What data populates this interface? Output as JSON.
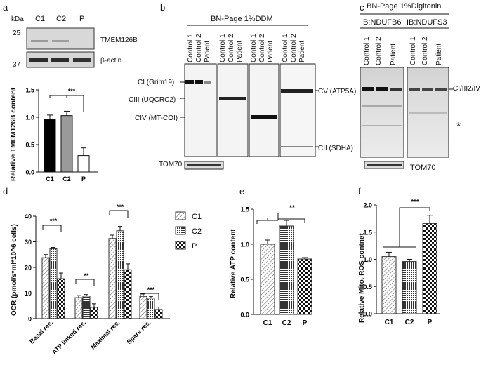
{
  "panels": {
    "a": {
      "letter": "a",
      "blot_header": {
        "kda": "kDa",
        "lanes": [
          "C1",
          "C2",
          "P"
        ],
        "markers": [
          "25",
          "37"
        ],
        "bands": [
          "TMEM126B",
          "β-actin"
        ]
      },
      "significance": "***"
    },
    "b": {
      "letter": "b",
      "title": "BN-Page 1%DDM",
      "lanes": [
        "Control 1",
        "Control 2",
        "Patient"
      ],
      "left_labels": [
        "CI (Grim19)",
        "CIII (UQCRC2)",
        "CIV (MT-COI)"
      ],
      "right_labels": [
        "CV (ATP5A)",
        "CII (SDHA)"
      ],
      "loading": "TOM70"
    },
    "c": {
      "letter": "c",
      "title": "BN-Page 1%Digitonin",
      "ib_left": "IB:NDUFB6",
      "ib_right": "IB:NDUFS3",
      "lanes": [
        "Control 1",
        "Control 2",
        "Patient"
      ],
      "right_label": "CI/III2/IV",
      "asterisk": "*",
      "loading": "TOM70"
    },
    "d": {
      "letter": "d"
    },
    "e": {
      "letter": "e"
    },
    "f": {
      "letter": "f"
    }
  },
  "chart_data": [
    {
      "id": "a",
      "type": "bar",
      "categories": [
        "C1",
        "C2",
        "P"
      ],
      "values": [
        0.96,
        1.03,
        0.3
      ],
      "errors": [
        0.08,
        0.08,
        0.14
      ],
      "ylabel": "Relative TMEM126B content",
      "ylim": [
        0,
        1.5
      ],
      "yticks": [
        "0.0",
        "0.5",
        "1.0",
        "1.5"
      ],
      "colors": [
        "#000000",
        "#9a9a9a",
        "#ffffff"
      ],
      "significance": "***"
    },
    {
      "id": "d",
      "type": "bar",
      "groups": [
        "Basal res.",
        "ATP linked res.",
        "Maximal res.",
        "Spare res."
      ],
      "series": [
        {
          "name": "C1",
          "values": [
            23.8,
            8.2,
            31.3,
            8.7
          ],
          "errors": [
            1.2,
            0.8,
            1.3,
            0.9
          ]
        },
        {
          "name": "C2",
          "values": [
            27.3,
            8.8,
            34.3,
            8.0
          ],
          "errors": [
            0.5,
            0.6,
            1.7,
            0.7
          ]
        },
        {
          "name": "P",
          "values": [
            15.6,
            4.4,
            19.1,
            3.6
          ],
          "errors": [
            2.2,
            1.4,
            2.3,
            0.9
          ]
        }
      ],
      "ylabel": "OCR (pmol/s*ml*10^6 cells)",
      "ylim": [
        0,
        40
      ],
      "yticks": [
        "0",
        "10",
        "20",
        "30",
        "40"
      ],
      "significance": [
        "***",
        "**",
        "***",
        "***"
      ],
      "legend": [
        "C1",
        "C2",
        "P"
      ]
    },
    {
      "id": "e",
      "type": "bar",
      "categories": [
        "C1",
        "C2",
        "P"
      ],
      "values": [
        1.0,
        1.26,
        0.79
      ],
      "errors": [
        0.06,
        0.08,
        0.02
      ],
      "ylabel": "Relative ATP content",
      "ylim": [
        0,
        1.5
      ],
      "yticks": [
        "0.0",
        "0.5",
        "1.0",
        "1.5"
      ],
      "significance": "**"
    },
    {
      "id": "f",
      "type": "bar",
      "categories": [
        "C1",
        "C2",
        "P"
      ],
      "values": [
        1.05,
        0.96,
        1.66
      ],
      "errors": [
        0.08,
        0.04,
        0.15
      ],
      "ylabel": "Relative Mito. ROS contnet",
      "ylim": [
        0,
        2.0
      ],
      "yticks": [
        "0.0",
        "0.5",
        "1.0",
        "1.5",
        "2.0"
      ],
      "significance": "***"
    }
  ]
}
